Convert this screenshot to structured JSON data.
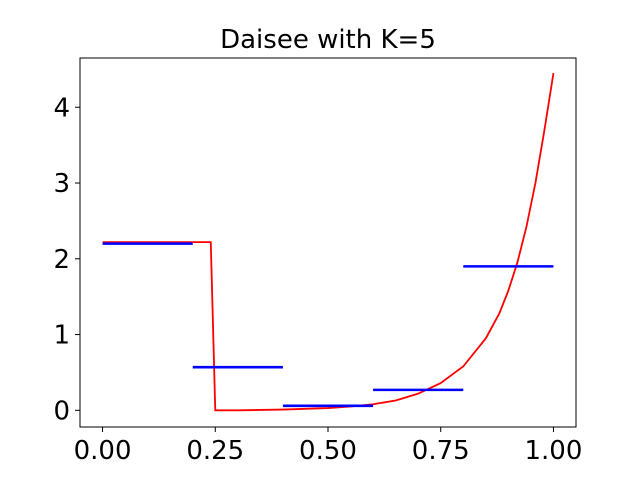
{
  "chart_data": {
    "type": "line",
    "title": "Daisee with K=5",
    "xlabel": "",
    "ylabel": "",
    "xlim": [
      -0.05,
      1.05
    ],
    "ylim": [
      -0.22,
      4.65
    ],
    "x_ticks": [
      0.0,
      0.25,
      0.5,
      0.75,
      1.0
    ],
    "x_tick_labels": [
      "0.00",
      "0.25",
      "0.50",
      "0.75",
      "1.00"
    ],
    "y_ticks": [
      0,
      1,
      2,
      3,
      4
    ],
    "y_tick_labels": [
      "0",
      "1",
      "2",
      "3",
      "4"
    ],
    "grid": false,
    "legend": "none",
    "series": [
      {
        "style": "line",
        "color": "#ff0000",
        "x": [
          0.0,
          0.1,
          0.2,
          0.24,
          0.25,
          0.3,
          0.35,
          0.4,
          0.45,
          0.5,
          0.55,
          0.6,
          0.65,
          0.7,
          0.75,
          0.8,
          0.85,
          0.88,
          0.9,
          0.92,
          0.94,
          0.96,
          0.98,
          1.0
        ],
        "y": [
          2.22,
          2.22,
          2.22,
          2.22,
          0.0,
          0.0,
          0.005,
          0.01,
          0.02,
          0.03,
          0.05,
          0.08,
          0.13,
          0.22,
          0.36,
          0.58,
          0.95,
          1.28,
          1.58,
          1.95,
          2.42,
          3.0,
          3.7,
          4.45
        ]
      },
      {
        "style": "step-segments",
        "color": "#0000ff",
        "segments": [
          {
            "x0": 0.0,
            "x1": 0.2,
            "y": 2.2
          },
          {
            "x0": 0.2,
            "x1": 0.4,
            "y": 0.57
          },
          {
            "x0": 0.4,
            "x1": 0.6,
            "y": 0.06
          },
          {
            "x0": 0.6,
            "x1": 0.8,
            "y": 0.27
          },
          {
            "x0": 0.8,
            "x1": 1.0,
            "y": 1.9
          }
        ]
      }
    ]
  }
}
